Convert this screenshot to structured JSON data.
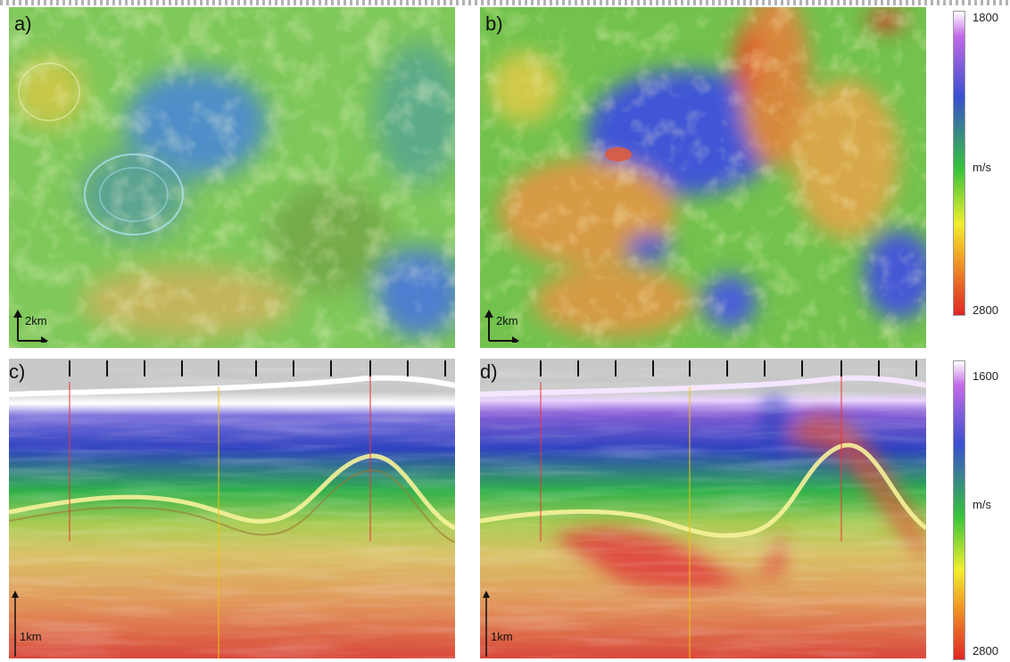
{
  "panels": {
    "a": {
      "label": "a)",
      "scale_label": "2km"
    },
    "b": {
      "label": "b)",
      "scale_label": "2km"
    },
    "c": {
      "label": "c)",
      "scale_label": "1km"
    },
    "d": {
      "label": "d)",
      "scale_label": "1km"
    }
  },
  "colorbar_top": {
    "max_label": "1800",
    "unit": "m/s",
    "min_label": "2800"
  },
  "colorbar_bottom": {
    "max_label": "1600",
    "unit": "m/s",
    "min_label": "2800"
  },
  "colors": {
    "purple": "#c46ae8",
    "blue": "#3a4fd0",
    "green": "#37c43a",
    "yellow": "#f2ee2e",
    "orange": "#f09a25",
    "red": "#e02525"
  }
}
